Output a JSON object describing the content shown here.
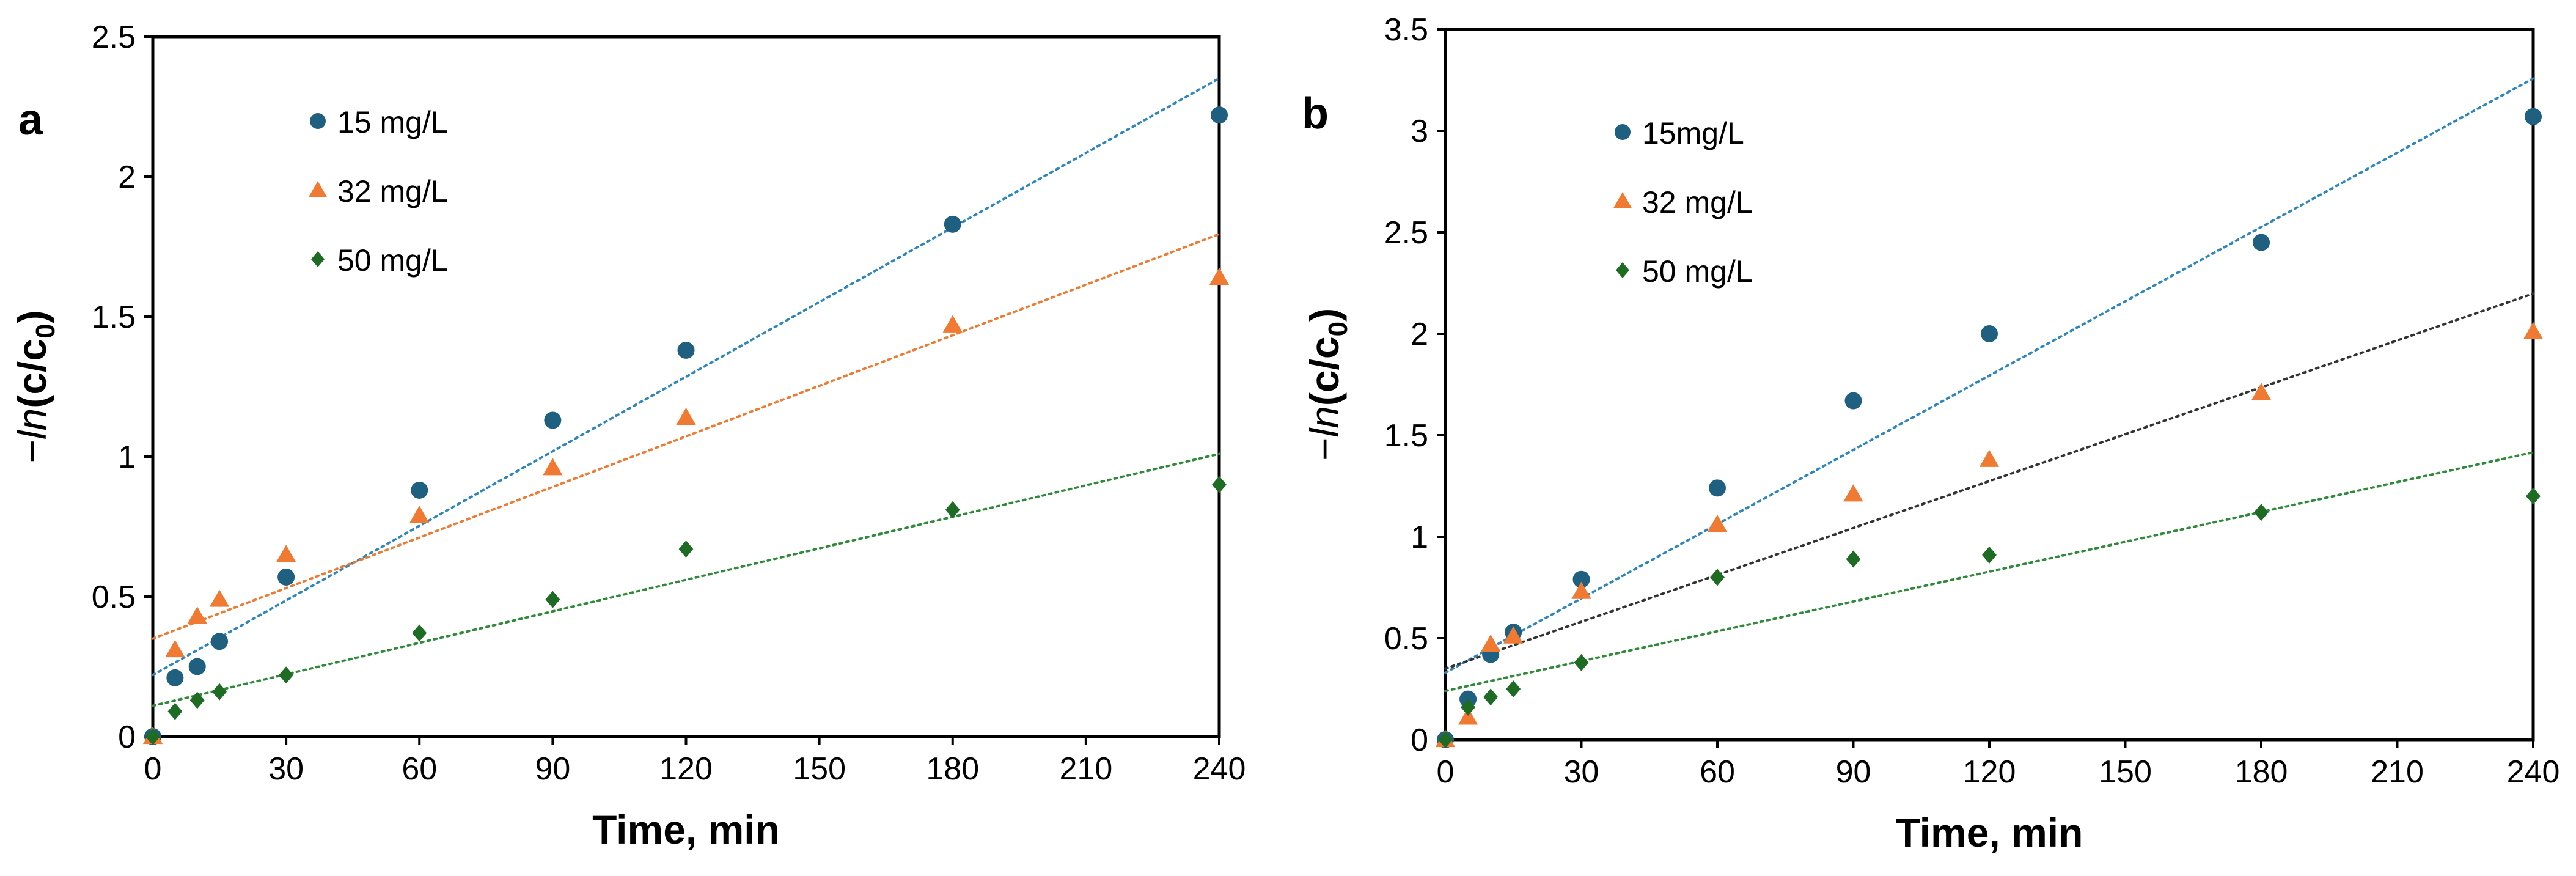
{
  "chart_data": [
    {
      "type": "scatter",
      "panel": "a",
      "xlabel": "Time, min",
      "ylabel": {
        "prefix": "−",
        "fn": "ln",
        "body": "(c/c",
        "sub": "0",
        "close": ")"
      },
      "xlim": [
        0,
        240
      ],
      "ylim": [
        0,
        2.5
      ],
      "xticks": [
        0,
        30,
        60,
        90,
        120,
        150,
        180,
        210,
        240
      ],
      "yticks": [
        0,
        0.5,
        1,
        1.5,
        2,
        2.5
      ],
      "xtick_labels": [
        "0",
        "30",
        "60",
        "90",
        "120",
        "150",
        "180",
        "210",
        "240"
      ],
      "ytick_labels": [
        "0",
        "0.5",
        "1",
        "1.5",
        "2",
        "2.5"
      ],
      "x": [
        0,
        5,
        10,
        15,
        30,
        60,
        90,
        120,
        180,
        240
      ],
      "series": [
        {
          "name": "15 mg/L",
          "marker": "circle",
          "color": "#1f5f7f",
          "values": [
            0,
            0.21,
            0.25,
            0.34,
            0.57,
            0.88,
            1.13,
            1.38,
            1.83,
            2.22
          ],
          "trend": {
            "slope": 0.00888,
            "intercept": 0.22,
            "color": "#2f86bd"
          }
        },
        {
          "name": "32 mg/L",
          "marker": "triangle",
          "color": "#f07a32",
          "values": [
            0,
            0.31,
            0.43,
            0.49,
            0.65,
            0.79,
            0.96,
            1.14,
            1.47,
            1.64
          ],
          "trend": {
            "slope": 0.00602,
            "intercept": 0.35,
            "color": "#f07a32"
          }
        },
        {
          "name": "50 mg/L",
          "marker": "diamond",
          "color": "#1e6b23",
          "values": [
            0,
            0.09,
            0.13,
            0.16,
            0.22,
            0.37,
            0.49,
            0.67,
            0.81,
            0.9
          ],
          "trend": {
            "slope": 0.00375,
            "intercept": 0.11,
            "color": "#2f8a3a"
          }
        }
      ]
    },
    {
      "type": "scatter",
      "panel": "b",
      "xlabel": "Time, min",
      "ylabel": {
        "prefix": "−",
        "fn": "ln",
        "body": "(c/c",
        "sub": "0",
        "close": ")"
      },
      "xlim": [
        0,
        240
      ],
      "ylim": [
        0,
        3.5
      ],
      "xticks": [
        0,
        30,
        60,
        90,
        120,
        150,
        180,
        210,
        240
      ],
      "yticks": [
        0,
        0.5,
        1,
        1.5,
        2,
        2.5,
        3,
        3.5
      ],
      "xtick_labels": [
        "0",
        "30",
        "60",
        "90",
        "120",
        "150",
        "180",
        "210",
        "240"
      ],
      "ytick_labels": [
        "0",
        "0.5",
        "1",
        "1.5",
        "2",
        "2.5",
        "3",
        "3.5"
      ],
      "x": [
        0,
        5,
        10,
        15,
        30,
        60,
        90,
        120,
        180,
        240
      ],
      "series": [
        {
          "name": "15mg/L",
          "marker": "circle",
          "color": "#1f5f7f",
          "values": [
            0,
            0.2,
            0.42,
            0.53,
            0.79,
            1.24,
            1.67,
            2.0,
            2.45,
            3.07
          ],
          "trend": {
            "slope": 0.0122,
            "intercept": 0.33,
            "color": "#2f86bd"
          }
        },
        {
          "name": "32 mg/L",
          "marker": "triangle",
          "color": "#f07a32",
          "values": [
            0,
            0.11,
            0.47,
            0.51,
            0.73,
            1.06,
            1.21,
            1.38,
            1.71,
            2.01
          ],
          "trend": {
            "slope": 0.0077,
            "intercept": 0.35,
            "color": "#333333"
          }
        },
        {
          "name": "50 mg/L",
          "marker": "diamond",
          "color": "#1e6b23",
          "values": [
            0,
            0.16,
            0.21,
            0.25,
            0.38,
            0.8,
            0.89,
            0.91,
            1.12,
            1.2
          ],
          "trend": {
            "slope": 0.0049,
            "intercept": 0.24,
            "color": "#2f8a3a"
          }
        }
      ]
    }
  ]
}
